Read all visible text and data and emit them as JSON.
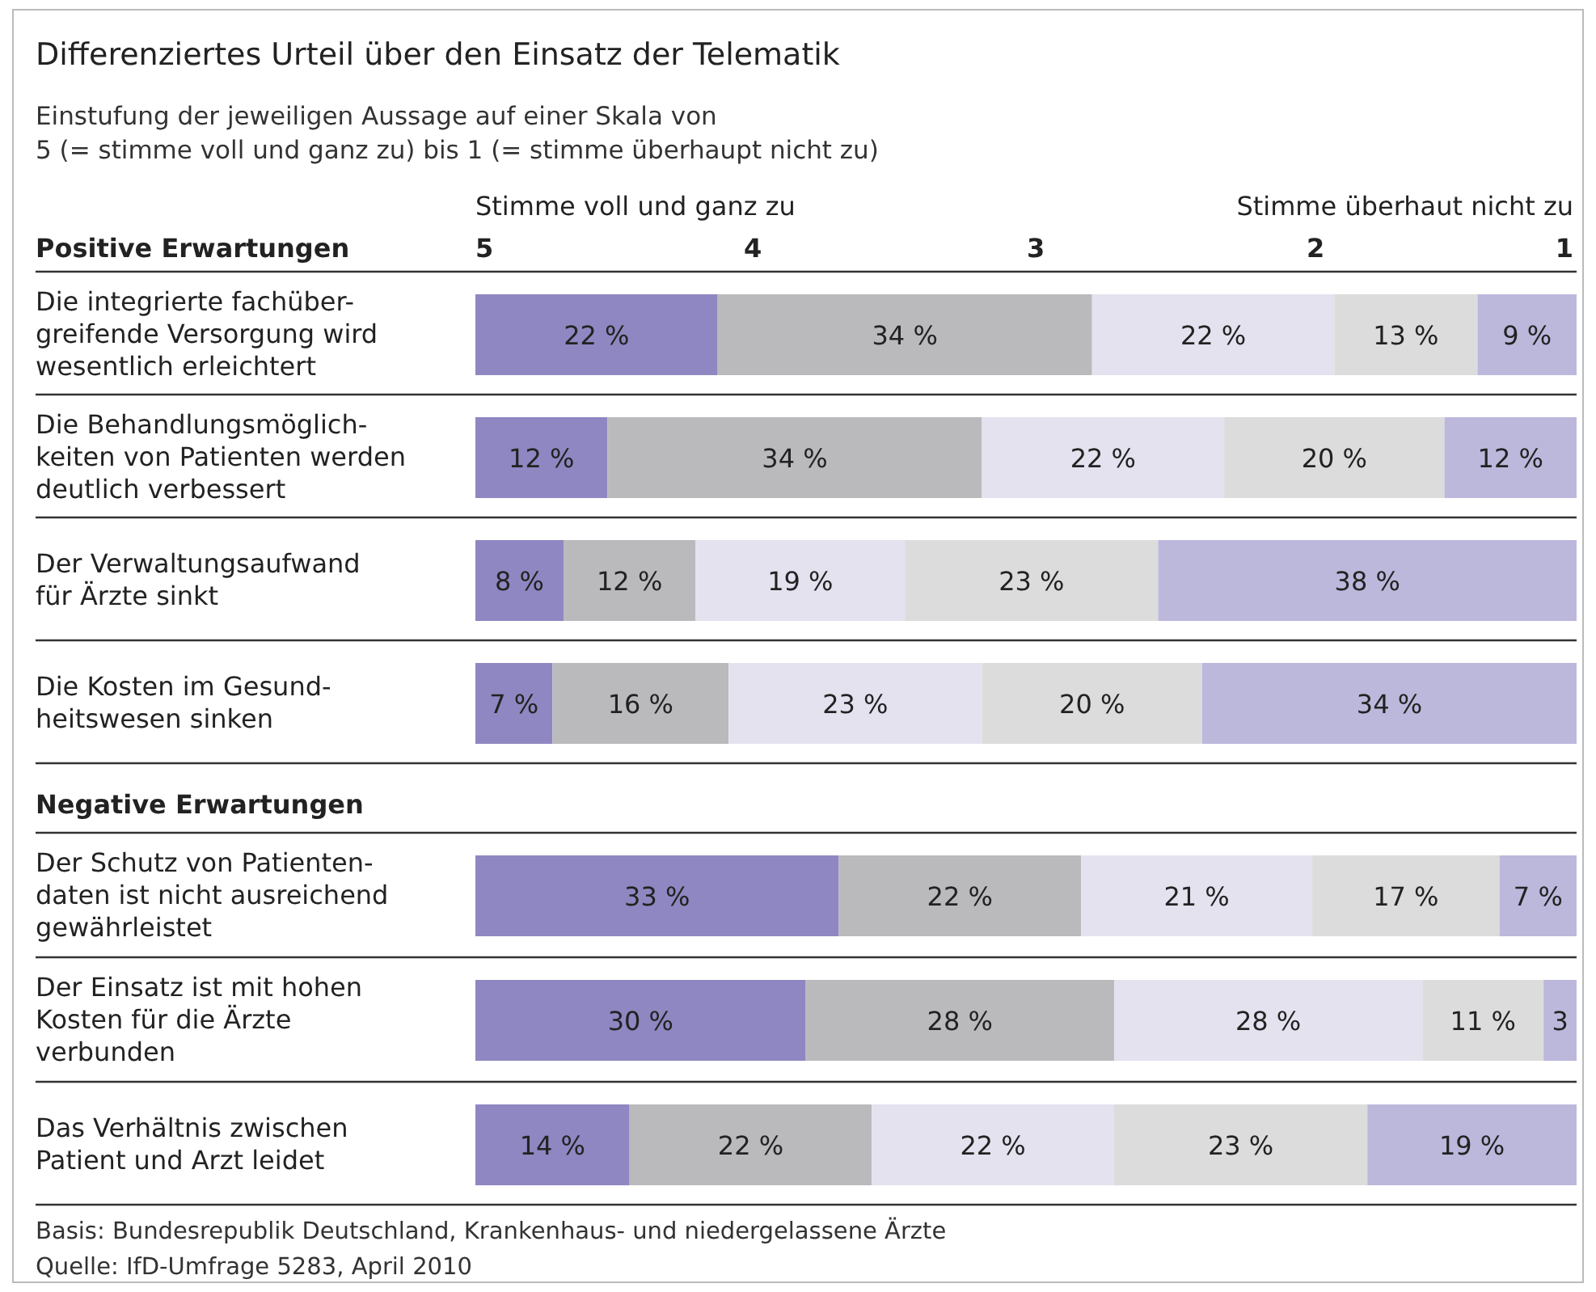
{
  "chart_data": {
    "type": "bar",
    "orientation": "horizontal",
    "stacked": true,
    "title": "Differenziertes Urteil über den Einsatz der Telematik",
    "subtitle": "Einstufung der jeweiligen Aussage auf einer Skala von\n5 (= stimme voll und ganz zu) bis 1 (= stimme überhaupt nicht zu)",
    "categories": [
      "Die integrierte fachüber-\ngreifende Versorgung wird\nwesentlich erleichtert",
      "Die Behandlungsmöglich-\nkeiten von Patienten werden\ndeutlich verbessert",
      "Der Verwaltungsaufwand\nfür Ärzte sinkt",
      "Die Kosten im Gesund-\nheitswesen sinken",
      "Der Schutz von Patienten-\ndaten ist nicht ausreichend\ngewährleistet",
      "Der Einsatz ist mit hohen\nKosten für die Ärzte\nverbunden",
      "Das Verhältnis zwischen\nPatient und Arzt leidet"
    ],
    "xlim": [
      0,
      100
    ],
    "series": [
      {
        "color": "#8f87c1",
        "values": [
          22,
          12,
          8,
          7,
          33,
          30,
          14
        ],
        "value_labels": [
          "22 %",
          "12 %",
          "8 %",
          "7 %",
          "33 %",
          "30 %",
          "14 %"
        ]
      },
      {
        "color": "#bababd",
        "values": [
          34,
          34,
          12,
          16,
          22,
          28,
          22
        ],
        "value_labels": [
          "34 %",
          "34 %",
          "12 %",
          "16 %",
          "22 %",
          "28 %",
          "22 %"
        ]
      },
      {
        "color": "#e4e2ef",
        "values": [
          22,
          22,
          19,
          23,
          21,
          28,
          22
        ],
        "value_labels": [
          "22 %",
          "22 %",
          "19 %",
          "23 %",
          "21 %",
          "28 %",
          "22 %"
        ]
      },
      {
        "color": "#dcdcdc",
        "values": [
          13,
          20,
          23,
          20,
          17,
          11,
          23
        ],
        "value_labels": [
          "13 %",
          "20 %",
          "23 %",
          "20 %",
          "17 %",
          "11 %",
          "23 %"
        ]
      },
      {
        "color": "#bcb8dc",
        "values": [
          9,
          12,
          38,
          34,
          7,
          3,
          19
        ],
        "value_labels": [
          "9 %",
          "12 %",
          "38 %",
          "34 %",
          "7 %",
          "3",
          "19 %"
        ]
      }
    ],
    "annotations": [
      "Stimme voll und ganz zu",
      "Stimme überhaut nicht zu",
      "5",
      "4",
      "3",
      "2",
      "1",
      "Positive Erwartungen",
      "Negative Erwartungen",
      "Basis: Bundesrepublik Deutschland, Krankenhaus- und niedergelassene Ärzte",
      "Quelle: IfD-Umfrage 5283, April 2010"
    ]
  }
}
